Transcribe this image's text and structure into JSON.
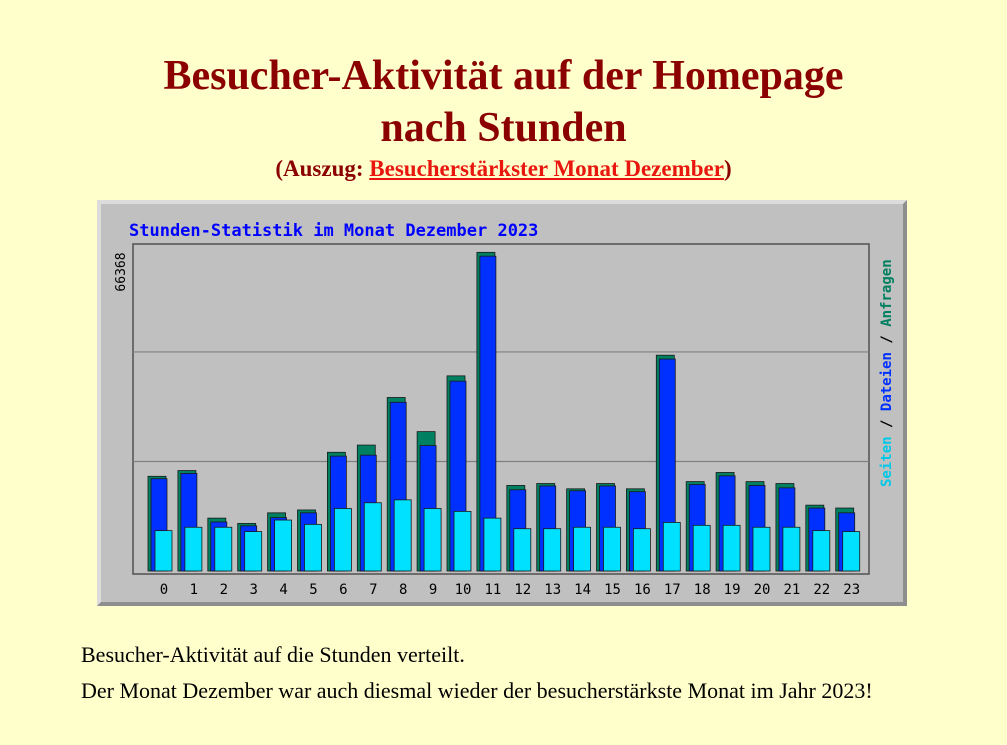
{
  "page": {
    "title_line1": "Besucher-Aktivität auf der Homepage",
    "title_line2": "nach Stunden",
    "subtitle_prefix": "(Auszug: ",
    "subtitle_link": "Besucherstärkster Monat Dezember",
    "subtitle_suffix": ")",
    "desc_line1": "Besucher-Aktivität  auf die Stunden verteilt.",
    "desc_line2": "Der Monat Dezember war auch diesmal wieder der besucherstärkste Monat im Jahr 2023!"
  },
  "chart_data": {
    "type": "bar",
    "title": "Stunden-Statistik im Monat Dezember 2023",
    "ymax_label": "66368",
    "ylim": [
      0,
      66368
    ],
    "grid": true,
    "legend": [
      "Seiten",
      "Dateien",
      "Anfragen"
    ],
    "legend_separator": "/",
    "legend_placement": "right-vertical",
    "categories": [
      "0",
      "1",
      "2",
      "3",
      "4",
      "5",
      "6",
      "7",
      "8",
      "9",
      "10",
      "11",
      "12",
      "13",
      "14",
      "15",
      "16",
      "17",
      "18",
      "19",
      "20",
      "21",
      "22",
      "23"
    ],
    "series": [
      {
        "name": "Anfragen",
        "color": "#008060",
        "values": [
          19700,
          20900,
          11000,
          9900,
          12100,
          12700,
          24700,
          26200,
          36100,
          29000,
          40600,
          66300,
          17800,
          18200,
          17100,
          18200,
          17100,
          44900,
          18600,
          20500,
          18600,
          18200,
          13700,
          13100
        ]
      },
      {
        "name": "Dateien",
        "color": "#0030ff",
        "values": [
          19200,
          20300,
          10200,
          9400,
          11100,
          12100,
          23900,
          24100,
          35100,
          26100,
          39500,
          65500,
          16900,
          17700,
          16700,
          17700,
          16500,
          44100,
          18000,
          19800,
          17800,
          17300,
          13100,
          12100
        ]
      },
      {
        "name": "Seiten",
        "color": "#00e0ff",
        "values": [
          8400,
          9100,
          9100,
          8200,
          10600,
          9700,
          13000,
          14200,
          14800,
          13000,
          12400,
          11000,
          8800,
          8800,
          9100,
          9100,
          8800,
          10100,
          9500,
          9500,
          9100,
          9100,
          8400,
          8200
        ]
      }
    ],
    "colors": {
      "plot_bg": "#c0c0c0",
      "grid": "#808080",
      "title_text": "#0000ff",
      "axis_text": "#000000",
      "legend_seiten": "#00c8e8",
      "legend_dateien": "#0030ff",
      "legend_anfragen": "#008060",
      "legend_sep": "#000000"
    }
  }
}
